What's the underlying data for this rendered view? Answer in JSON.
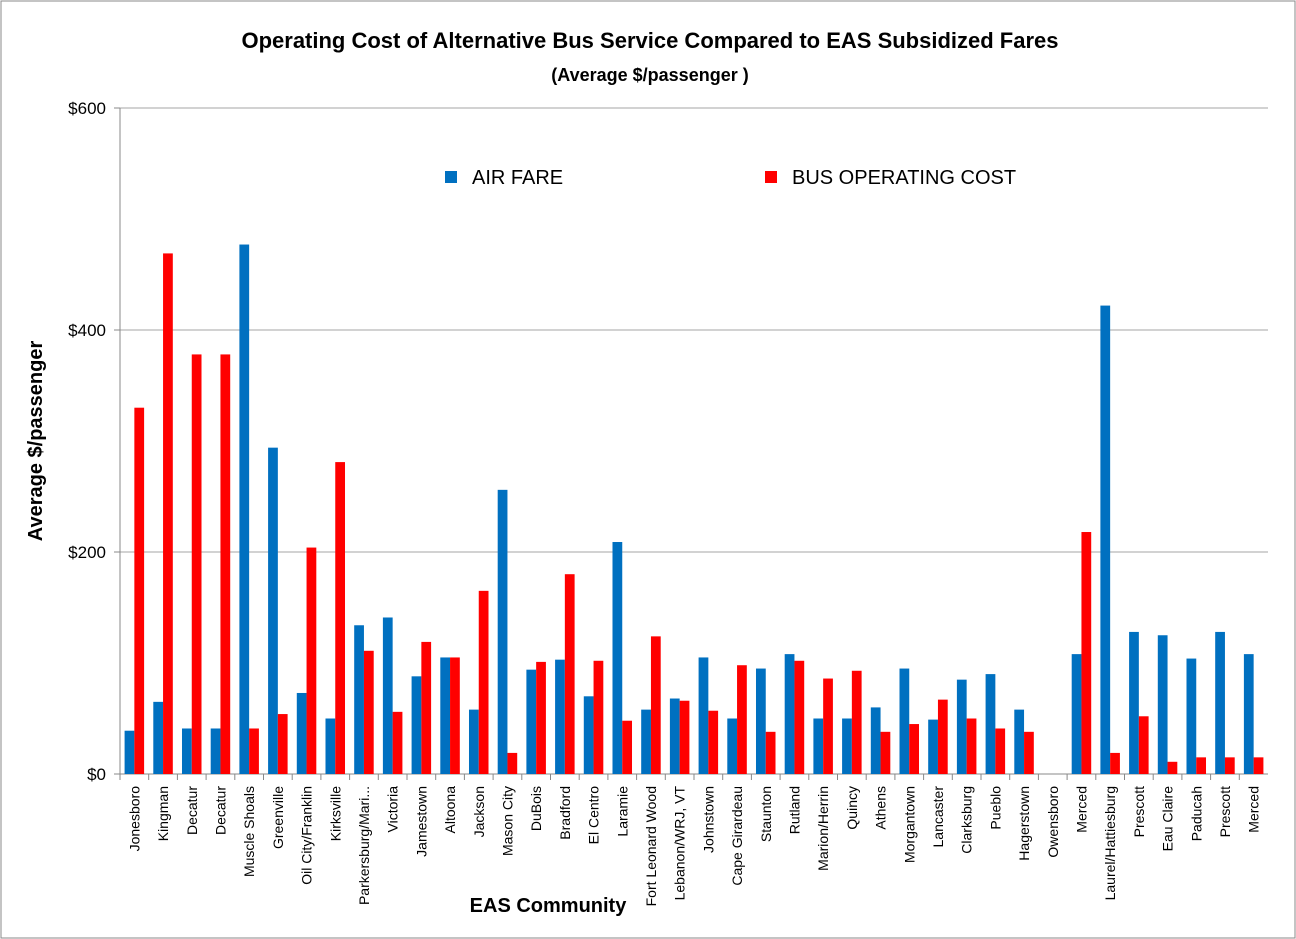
{
  "chart_data": {
    "type": "bar",
    "title": "Operating Cost of Alternative Bus Service Compared to EAS Subsidized Fares",
    "subtitle": "(Average $/passenger )",
    "x_label": "EAS Community",
    "y_label": "Average $/passenger",
    "categories": [
      "Jonesboro",
      "Kingman",
      "Decatur",
      "Decatur",
      "Muscle Shoals",
      "Greenville",
      "Oil City/Franklin",
      "Kirksville",
      "Parkersburg/Mari...",
      "Victoria",
      "Jamestown",
      "Altoona",
      "Jackson",
      "Mason City",
      "DuBois",
      "Bradford",
      "El Centro",
      "Laramie",
      "Fort Leonard Wood",
      "Lebanon/WRJ, VT",
      "Johnstown",
      "Cape Girardeau",
      "Staunton",
      "Rutland",
      "Marion/Herrin",
      "Quincy",
      "Athens",
      "Morgantown",
      "Lancaster",
      "Clarksburg",
      "Pueblo",
      "Hagerstown",
      "Owensboro",
      "Merced",
      "Laurel/Hattiesburg",
      "Prescott",
      "Eau Claire",
      "Paducah",
      "Prescott",
      "Merced"
    ],
    "series": [
      {
        "name": "AIR FARE",
        "color": "#0070c0",
        "values": [
          39,
          65,
          41,
          41,
          477,
          294,
          73,
          50,
          134,
          141,
          88,
          105,
          58,
          256,
          94,
          103,
          70,
          209,
          58,
          68,
          105,
          50,
          95,
          108,
          50,
          50,
          60,
          95,
          49,
          85,
          90,
          58,
          null,
          108,
          422,
          128,
          125,
          104,
          128,
          108
        ]
      },
      {
        "name": "BUS OPERATING COST",
        "color": "#ff0000",
        "values": [
          330,
          469,
          378,
          378,
          41,
          54,
          204,
          281,
          111,
          56,
          119,
          105,
          165,
          19,
          101,
          180,
          102,
          48,
          124,
          66,
          57,
          98,
          38,
          102,
          86,
          93,
          38,
          45,
          67,
          50,
          41,
          38,
          null,
          218,
          19,
          52,
          11,
          15,
          15,
          15
        ]
      }
    ],
    "ylim": [
      0,
      600
    ],
    "yticks": [
      {
        "value": 0,
        "label": "$0"
      },
      {
        "value": 200,
        "label": "$200"
      },
      {
        "value": 400,
        "label": "$400"
      },
      {
        "value": 600,
        "label": "$600"
      }
    ],
    "grid": true,
    "legend": "top"
  }
}
